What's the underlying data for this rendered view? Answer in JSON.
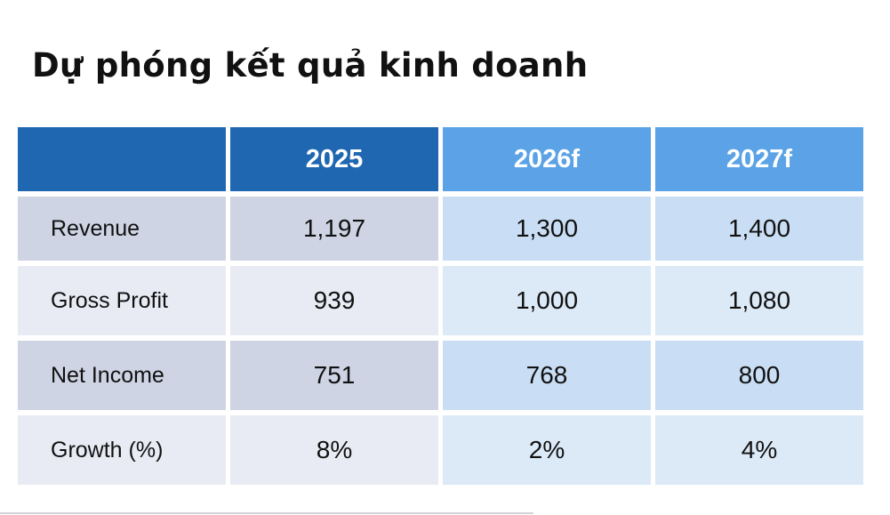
{
  "title": "Dự phóng kết quả kinh doanh",
  "table": {
    "header": [
      "",
      "2025",
      "2026f",
      "2027f"
    ],
    "rows": [
      {
        "label": "Revenue",
        "values": [
          "1,197",
          "1,300",
          "1,400"
        ]
      },
      {
        "label": "Gross Profit",
        "values": [
          "939",
          "1,000",
          "1,080"
        ]
      },
      {
        "label": "Net Income",
        "values": [
          "751",
          "768",
          "800"
        ]
      },
      {
        "label": "Growth (%)",
        "values": [
          "8%",
          "2%",
          "4%"
        ]
      }
    ]
  },
  "colors": {
    "header_actual": "#1f67b1",
    "header_forecast": "#5ba3e6",
    "row_label_dark": "#ced4e4",
    "row_label_light": "#e8ebf3",
    "forecast_dark": "#c9def4",
    "forecast_light": "#dce9f7"
  }
}
